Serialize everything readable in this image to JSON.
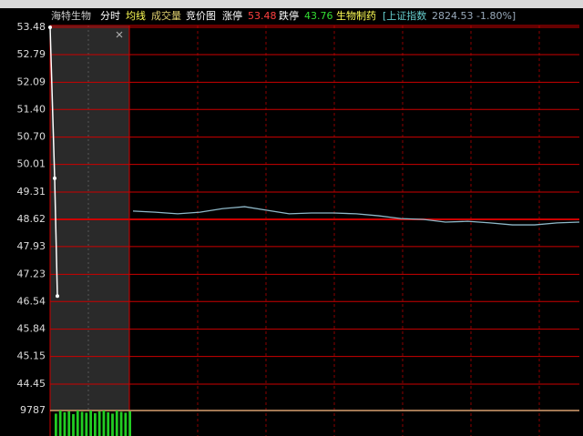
{
  "header": {
    "stock": "海特生物",
    "tabs": [
      "分时",
      "均线",
      "成交量",
      "竞价图"
    ],
    "limit_up_label": "涨停",
    "limit_up": "53.48",
    "limit_down_label": "跌停",
    "limit_down": "43.76",
    "sector": "生物制药",
    "index_name": "[上证指数",
    "index_value": "2824.53 -1.80%]"
  },
  "chart_data": {
    "type": "line",
    "values": [
      48.83,
      48.8,
      48.76,
      48.8,
      48.89,
      48.94,
      48.85,
      48.76,
      48.78,
      48.78,
      48.76,
      48.71,
      48.64,
      48.62,
      48.55,
      48.57,
      48.53,
      48.48,
      48.48,
      48.53,
      48.55
    ],
    "color": "#8fb8c8",
    "auction_values": [
      53.48,
      49.66,
      46.68
    ],
    "auction_color": "#ffffff",
    "ylim": [
      44.45,
      53.48
    ],
    "yticks": [
      53.48,
      52.79,
      52.09,
      {
        "value": 51.4,
        "label": "51.40"
      },
      {
        "value": 50.7,
        "label": "50.70"
      },
      50.01,
      49.31,
      48.62,
      47.93,
      47.23,
      46.54,
      45.84,
      45.15,
      44.45
    ],
    "volume": {
      "values": [
        9100,
        9787,
        9400,
        9600,
        9000,
        9787,
        9500,
        9300,
        9787,
        9200,
        9600,
        9787,
        9400,
        9100,
        9787,
        9500,
        9300,
        9600
      ],
      "color": "#22cc22",
      "ylim": [
        0,
        9787
      ],
      "yticks": [
        9787
      ]
    },
    "grid": true
  }
}
